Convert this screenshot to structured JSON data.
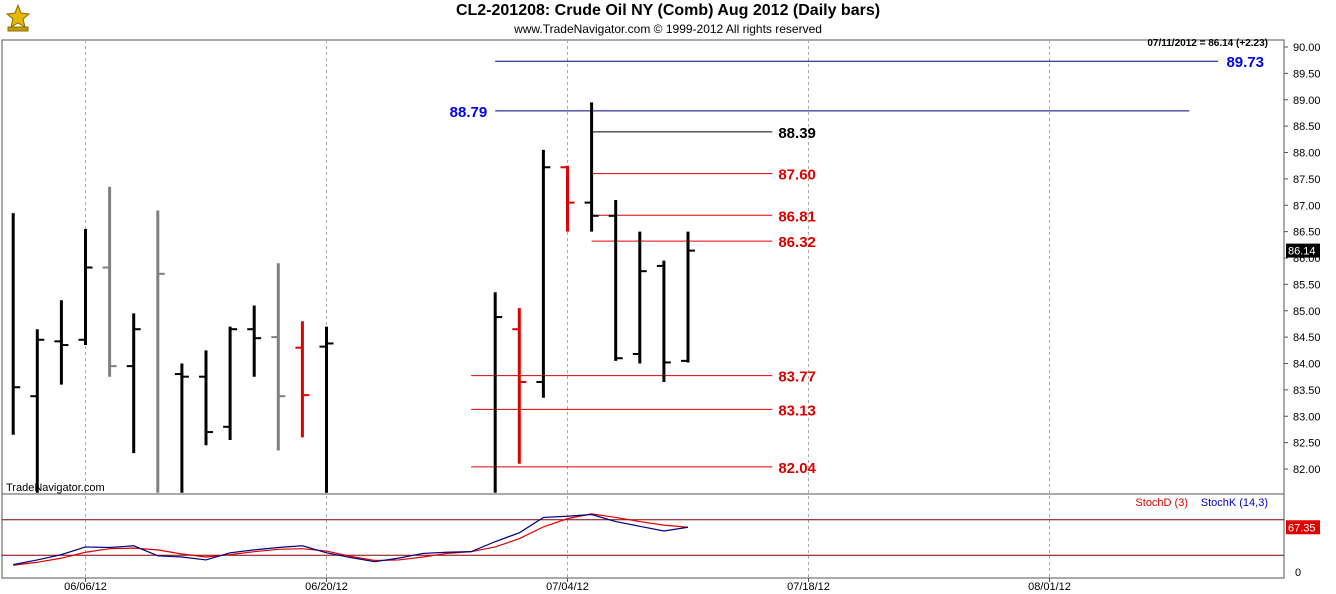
{
  "header": {
    "title": "CL2-201208:  Crude Oil NY (Comb) Aug 2012  (Daily bars)",
    "subtitle": "www.TradeNavigator.com © 1999-2012 All rights reserved",
    "last_quote": "07/11/2012 = 86.14 (+2.23)",
    "watermark": "TradeNavigator.com"
  },
  "colors": {
    "bar_default": "#000000",
    "bar_gray": "#808080",
    "bar_red": "#e00000",
    "level_blue": "#000080",
    "level_red": "#e00000",
    "label_blue": "#0000ee",
    "label_red": "#dd0000",
    "stoch_d": "#e00000",
    "stoch_k": "#0000cc"
  },
  "chart_data": [
    {
      "type": "ohlc",
      "y_axis": {
        "ticks": [
          "82.00",
          "82.50",
          "83.00",
          "83.50",
          "84.00",
          "84.50",
          "85.00",
          "85.50",
          "86.00",
          "86.50",
          "87.00",
          "87.50",
          "88.00",
          "88.50",
          "89.00",
          "89.50",
          "90.00"
        ],
        "range": [
          81.55,
          90.2
        ],
        "last_value_label": "86.14"
      },
      "x_axis": {
        "date_labels": [
          {
            "slot": 3,
            "label": "06/06/12"
          },
          {
            "slot": 13,
            "label": "06/20/12"
          },
          {
            "slot": 23,
            "label": "07/04/12"
          },
          {
            "slot": 33,
            "label": "07/18/12"
          },
          {
            "slot": 43,
            "label": "08/01/12"
          }
        ]
      },
      "bars": [
        {
          "slot": 0,
          "open": null,
          "high": 86.85,
          "low": 82.65,
          "close": 83.55,
          "color": "black"
        },
        {
          "slot": 1,
          "open": 83.38,
          "high": 84.65,
          "low": 81.55,
          "close": 84.45,
          "color": "black"
        },
        {
          "slot": 2,
          "open": 84.42,
          "high": 85.2,
          "low": 83.6,
          "close": 84.35,
          "color": "black"
        },
        {
          "slot": 3,
          "open": 84.45,
          "high": 86.55,
          "low": 84.35,
          "close": 85.82,
          "color": "black"
        },
        {
          "slot": 4,
          "open": 85.82,
          "high": 87.35,
          "low": 83.75,
          "close": 83.95,
          "color": "gray"
        },
        {
          "slot": 5,
          "open": 83.95,
          "high": 84.95,
          "low": 82.3,
          "close": 84.65,
          "color": "black"
        },
        {
          "slot": 6,
          "open": null,
          "high": 86.9,
          "low": 81.55,
          "close": 85.7,
          "color": "gray"
        },
        {
          "slot": 7,
          "open": 83.8,
          "high": 84.0,
          "low": 81.55,
          "close": 83.75,
          "color": "black"
        },
        {
          "slot": 8,
          "open": 83.75,
          "high": 84.25,
          "low": 82.45,
          "close": 82.7,
          "color": "black"
        },
        {
          "slot": 9,
          "open": 82.8,
          "high": 84.7,
          "low": 82.55,
          "close": 84.65,
          "color": "black"
        },
        {
          "slot": 10,
          "open": 84.65,
          "high": 85.1,
          "low": 83.75,
          "close": 84.48,
          "color": "black"
        },
        {
          "slot": 11,
          "open": 84.5,
          "high": 85.9,
          "low": 82.35,
          "close": 83.38,
          "color": "gray"
        },
        {
          "slot": 12,
          "open": 84.3,
          "high": 84.8,
          "low": 82.6,
          "close": 83.4,
          "color": "red"
        },
        {
          "slot": 13,
          "open": 84.32,
          "high": 84.7,
          "low": 81.55,
          "close": 84.38,
          "color": "black"
        },
        {
          "slot": 20,
          "open": null,
          "high": 85.35,
          "low": 81.55,
          "close": 84.88,
          "color": "black"
        },
        {
          "slot": 21,
          "open": 84.65,
          "high": 85.05,
          "low": 82.1,
          "close": 83.65,
          "color": "red"
        },
        {
          "slot": 22,
          "open": 83.65,
          "high": 88.05,
          "low": 83.35,
          "close": 87.72,
          "color": "black"
        },
        {
          "slot": 23,
          "open": 87.72,
          "high": 87.75,
          "low": 86.5,
          "close": 87.05,
          "color": "red"
        },
        {
          "slot": 24,
          "open": 87.05,
          "high": 88.95,
          "low": 86.5,
          "close": 86.8,
          "color": "black"
        },
        {
          "slot": 25,
          "open": 86.8,
          "high": 87.1,
          "low": 84.05,
          "close": 84.1,
          "color": "black"
        },
        {
          "slot": 26,
          "open": 84.18,
          "high": 86.5,
          "low": 84.0,
          "close": 85.75,
          "color": "black"
        },
        {
          "slot": 27,
          "open": 85.85,
          "high": 85.95,
          "low": 83.65,
          "close": 84.02,
          "color": "black"
        },
        {
          "slot": 28,
          "open": 84.05,
          "high": 86.5,
          "low": 84.02,
          "close": 86.14,
          "color": "black"
        }
      ],
      "levels": [
        {
          "value": 89.73,
          "label": "89.73",
          "color": "blue",
          "label_side": "right",
          "from_slot": 20,
          "to_slot": 50
        },
        {
          "value": 88.79,
          "label": "88.79",
          "color": "blue",
          "label_side": "left",
          "from_slot": 20,
          "to_slot": 48.8
        },
        {
          "value": 88.39,
          "label": "88.39",
          "color": "black",
          "label_side": "right",
          "from_slot": 24,
          "to_slot": 31.5
        },
        {
          "value": 87.6,
          "label": "87.60",
          "color": "red",
          "label_side": "right",
          "from_slot": 24,
          "to_slot": 31.5
        },
        {
          "value": 86.81,
          "label": "86.81",
          "color": "red",
          "label_side": "right",
          "from_slot": 24,
          "to_slot": 31.5
        },
        {
          "value": 86.32,
          "label": "86.32",
          "color": "red",
          "label_side": "right",
          "from_slot": 24,
          "to_slot": 31.5
        },
        {
          "value": 83.77,
          "label": "83.77",
          "color": "red",
          "label_side": "right",
          "from_slot": 19,
          "to_slot": 31.5
        },
        {
          "value": 83.13,
          "label": "83.13",
          "color": "red",
          "label_side": "right",
          "from_slot": 19,
          "to_slot": 31.5
        },
        {
          "value": 82.04,
          "label": "82.04",
          "color": "red",
          "label_side": "right",
          "from_slot": 19,
          "to_slot": 31.5
        }
      ]
    },
    {
      "type": "line",
      "title": "",
      "legend": [
        {
          "name": "StochD (3)",
          "color": "red"
        },
        {
          "name": "StochK (14,3)",
          "color": "blue"
        }
      ],
      "y_axis": {
        "ticks": [
          "0"
        ],
        "range": [
          0,
          100
        ],
        "reference_lines": [
          20,
          80
        ],
        "last_value_label": "67.35"
      },
      "x_slots": [
        0,
        1,
        2,
        3,
        4,
        5,
        6,
        7,
        8,
        9,
        10,
        11,
        12,
        13,
        14,
        15,
        16,
        17,
        18,
        19,
        20,
        21,
        22,
        23,
        24,
        25,
        26,
        27,
        28
      ],
      "series": [
        {
          "name": "StochD (3)",
          "color": "red",
          "values": [
            3,
            8,
            15,
            25,
            31,
            32,
            29,
            22,
            17,
            21,
            26,
            30,
            31,
            27,
            18,
            11,
            12,
            17,
            23,
            26,
            34,
            48,
            68,
            82,
            90,
            84,
            77,
            71,
            67.35
          ]
        },
        {
          "name": "StochK (14,3)",
          "color": "blue",
          "values": [
            4,
            12,
            21,
            34,
            33,
            36,
            19,
            17,
            12,
            24,
            29,
            33,
            36,
            24,
            16,
            9,
            15,
            23,
            25,
            26,
            43,
            58,
            84,
            86,
            89,
            77,
            69,
            61,
            67.35
          ]
        }
      ]
    }
  ]
}
